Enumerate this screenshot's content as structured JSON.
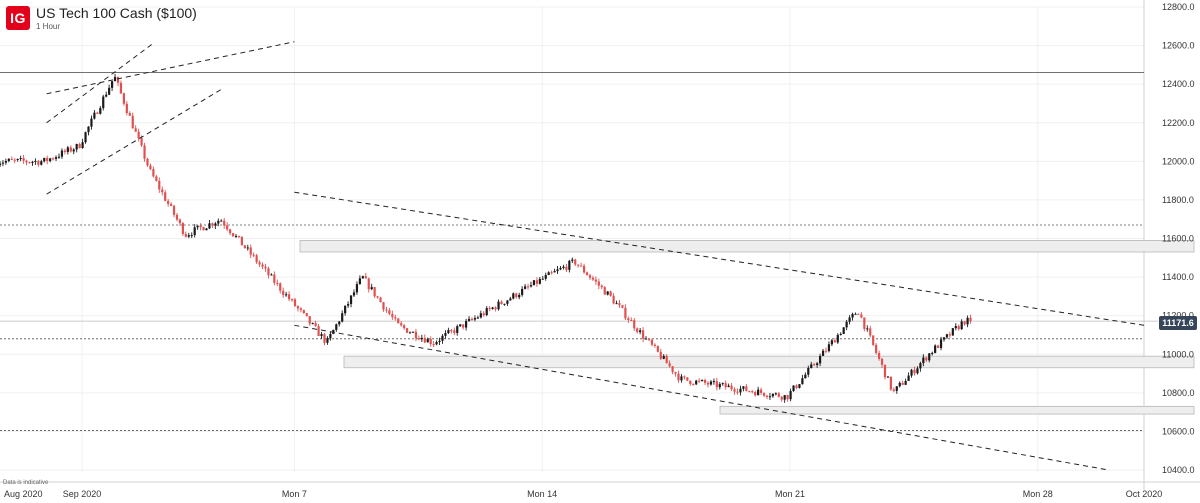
{
  "header": {
    "logo": "IG",
    "title": "US Tech 100 Cash ($100)",
    "timeframe": "1 Hour",
    "note": "Data is indicative"
  },
  "current_price": {
    "label": "11171.6",
    "value": 11171.6,
    "color": "#36455a"
  },
  "colors": {
    "up": "#1a1a1a",
    "down": "#e05050",
    "line": "#333333",
    "zone": "#eeeeee"
  },
  "chart_data": {
    "type": "candlestick",
    "title": "US Tech 100 Cash ($100)",
    "ylim": [
      10400,
      12800
    ],
    "y_ticks": [
      10400,
      10600,
      10800,
      11000,
      11200,
      11400,
      11600,
      11800,
      12000,
      12200,
      12400,
      12600,
      12800
    ],
    "y_tick_labels": [
      "10400.0",
      "10600.0",
      "10800.0",
      "11000.0",
      "11200.0",
      "11400.0",
      "11600.0",
      "11800.0",
      "12000.0",
      "12200.0",
      "12400.0",
      "12600.0",
      "12800.0"
    ],
    "x_labels": [
      "Aug 2020",
      "Sep 2020",
      "Mon 7",
      "Mon 14",
      "Mon 21",
      "Mon 28",
      "Oct 2020"
    ],
    "x_dates": [
      "2020-08-31",
      "2020-09-01",
      "2020-09-07",
      "2020-09-14",
      "2020-09-21",
      "2020-09-28",
      "2020-10-01"
    ],
    "approximate_close_path": [
      [
        "2020-08-31",
        12000
      ],
      [
        "2020-09-01",
        12080
      ],
      [
        "2020-09-02",
        12440
      ],
      [
        "2020-09-03",
        11950
      ],
      [
        "2020-09-04",
        11620
      ],
      [
        "2020-09-05",
        11700
      ],
      [
        "2020-09-08",
        11060
      ],
      [
        "2020-09-09",
        11400
      ],
      [
        "2020-09-10",
        11150
      ],
      [
        "2020-09-11",
        11060
      ],
      [
        "2020-09-14",
        11380
      ],
      [
        "2020-09-15",
        11480
      ],
      [
        "2020-09-16",
        11300
      ],
      [
        "2020-09-17",
        11080
      ],
      [
        "2020-09-18",
        10870
      ],
      [
        "2020-09-21",
        10780
      ],
      [
        "2020-09-22",
        11000
      ],
      [
        "2020-09-23",
        11230
      ],
      [
        "2020-09-24",
        10800
      ],
      [
        "2020-09-25",
        11000
      ],
      [
        "2020-09-26",
        11171.6
      ]
    ],
    "horizontal_levels": [
      {
        "value": 12460,
        "style": "solid"
      },
      {
        "value": 11670,
        "style": "dotted"
      },
      {
        "value": 11171.6,
        "style": "solid-light"
      },
      {
        "value": 11080,
        "style": "dotted"
      },
      {
        "value": 10605,
        "style": "dotted"
      }
    ],
    "zones": [
      {
        "from": 11530,
        "to": 11590
      },
      {
        "from": 10930,
        "to": 10990
      },
      {
        "from": 10690,
        "to": 10730
      }
    ],
    "trendlines": [
      {
        "from": [
          "2020-08-31",
          11830
        ],
        "to": [
          "2020-09-05",
          12380
        ],
        "style": "dashed"
      },
      {
        "from": [
          "2020-08-31",
          12200
        ],
        "to": [
          "2020-09-03",
          12610
        ],
        "style": "dashed"
      },
      {
        "from": [
          "2020-08-31",
          12350
        ],
        "to": [
          "2020-09-07",
          12620
        ],
        "style": "dashed"
      },
      {
        "from": [
          "2020-09-07",
          11840
        ],
        "to": [
          "2020-10-01",
          11150
        ],
        "style": "dashed"
      },
      {
        "from": [
          "2020-09-07",
          11150
        ],
        "to": [
          "2020-09-30",
          10400
        ],
        "style": "dashed"
      }
    ],
    "grid": true
  }
}
